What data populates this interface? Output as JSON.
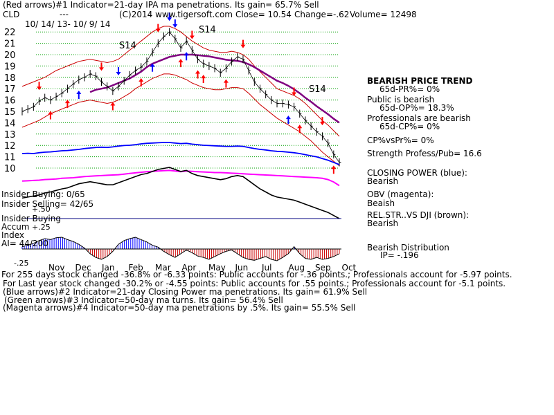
{
  "header": {
    "line1": "(Red arrows)#1 Indicator=21-day IPA ma penetrations. Its gain= 65.7% Sell",
    "ticker": "CLD",
    "dashes": "---",
    "site": "(C)2014 www.tigersoft.com",
    "close": "Close= 10.54",
    "change": "Change=-.62",
    "volume": "Volume= 12498",
    "date_range": "10/ 14/ 13- 10/ 9/ 14"
  },
  "signals": {
    "s14_a": "S14",
    "s14_b": "S14",
    "s14_c": "S14"
  },
  "side_panel": {
    "trend_title": "BEARISH PRICE TREND",
    "pr": "65d-PR%= 0%",
    "public_title": "Public is bearish",
    "op": "65d-OP%= 18.3%",
    "prof_title": "Professionals are bearish",
    "cp": "65d-CP%= 0%",
    "cpvspr": "CP%vsPr%=  0%",
    "strength": "Strength Profess/Pub= 16.6",
    "closing_power": "CLOSING POWER (blue):",
    "closing_power_val": "Bearish",
    "obv": "OBV (magenta):",
    "obv_val": "Beaish",
    "relstr": "REL.STR..VS DJI (brown):",
    "relstr_val": "Bearish",
    "dist": "Bearish Distribution",
    "ip": "IP= -.196"
  },
  "left_labels": {
    "insider_buying": "Insider Buying: 0/65",
    "insider_selling": "Insider Selling= 42/65",
    "val_50": "+.50",
    "insider_buying2": "Insider Buying",
    "accum": "Accum",
    "plus25": "+.25",
    "index": "Index",
    "ai": "AI= 44/200",
    "minus25": "-.25"
  },
  "footer": {
    "line1": "For 255 days stock changed -36.8% or -6.33 points:  Public accounts for -.36 points.;  Professionals account for -5.97 points.",
    "line2": "For Last year stock changed -30.2% or -4.55 points:  Public accounts for  .55 points.;  Professionals account for -5.1 points.",
    "line3": "(Blue arrows)#2 Indicator=21-day Closing Power ma penetrations. Its gain= 61.9% Sell",
    "line4": "(Green arrows)#3 Indicator=50-day ma turns. Its gain= 56.4% Sell",
    "line5": "(Magenta arrows)#4 Indicator=50-day ma penetrations by .5%. Its gain= 55.5% Sell"
  },
  "colors": {
    "price": "#000000",
    "ma": "#800080",
    "band": "#cc0000",
    "closing_power": "#0000ff",
    "obv": "#ff00ff",
    "relstr": "#000000",
    "accum_pos": "#0000ff",
    "accum_neg": "#cc0000",
    "grid": "#00a000",
    "arrow_red": "#ff0000",
    "arrow_blue": "#0000ff",
    "divider": "#000080"
  },
  "chart_data": {
    "type": "line",
    "ylim": [
      10,
      22.5
    ],
    "yticks": [
      "22",
      "21",
      "20",
      "19",
      "18",
      "17",
      "16",
      "15",
      "14",
      "13",
      "12",
      "11",
      "10"
    ],
    "months": [
      "Nov",
      "Dec",
      "Jan",
      "Feb",
      "Mar",
      "Apr",
      "May",
      "Jun",
      "Jul",
      "Aug",
      "Sep",
      "Oct"
    ],
    "price": [
      15.0,
      15.2,
      15.4,
      15.9,
      16.2,
      16.0,
      16.3,
      16.6,
      17.0,
      17.4,
      17.8,
      18.0,
      18.3,
      18.1,
      17.6,
      17.2,
      16.8,
      17.2,
      17.7,
      18.2,
      18.6,
      18.9,
      19.4,
      20.2,
      21.0,
      21.6,
      22.0,
      21.4,
      20.6,
      21.2,
      20.4,
      19.6,
      19.2,
      19.0,
      18.8,
      18.4,
      18.8,
      19.4,
      19.8,
      19.6,
      18.6,
      17.6,
      17.0,
      16.5,
      16.0,
      15.7,
      15.7,
      15.6,
      15.4,
      14.8,
      14.2,
      13.7,
      13.2,
      12.8,
      12.2,
      11.2,
      10.5
    ],
    "ma50": [
      null,
      null,
      null,
      null,
      null,
      null,
      null,
      null,
      null,
      null,
      null,
      null,
      16.7,
      16.9,
      17.0,
      17.1,
      17.3,
      17.5,
      17.7,
      17.9,
      18.2,
      18.5,
      18.9,
      19.2,
      19.4,
      19.6,
      19.8,
      19.9,
      20.0,
      20.0,
      20.0,
      19.95,
      19.9,
      19.85,
      19.75,
      19.65,
      19.55,
      19.5,
      19.45,
      19.35,
      19.15,
      18.9,
      18.6,
      18.3,
      18.0,
      17.7,
      17.5,
      17.25,
      16.95,
      16.6,
      16.2,
      15.85,
      15.45,
      15.1,
      14.75,
      14.35,
      14.0
    ],
    "upper_band": [
      17.2,
      17.4,
      17.6,
      17.8,
      18.0,
      18.3,
      18.6,
      18.8,
      19.0,
      19.2,
      19.4,
      19.5,
      19.6,
      19.5,
      19.4,
      19.3,
      19.4,
      19.6,
      20.0,
      20.4,
      20.8,
      21.2,
      21.6,
      22.0,
      22.3,
      22.5,
      22.5,
      22.3,
      22.0,
      21.6,
      21.2,
      20.9,
      20.6,
      20.4,
      20.3,
      20.2,
      20.2,
      20.3,
      20.2,
      20.0,
      19.6,
      19.0,
      18.5,
      18.0,
      17.5,
      17.0,
      16.8,
      16.6,
      16.4,
      16.1,
      15.7,
      15.2,
      14.7,
      14.2,
      13.8,
      13.3,
      12.8
    ],
    "lower_band": [
      13.6,
      13.8,
      14.0,
      14.2,
      14.5,
      14.8,
      15.0,
      15.2,
      15.4,
      15.6,
      15.8,
      15.9,
      16.0,
      15.9,
      15.8,
      15.7,
      15.8,
      16.0,
      16.3,
      16.6,
      17.0,
      17.3,
      17.6,
      17.9,
      18.1,
      18.3,
      18.3,
      18.2,
      18.0,
      17.8,
      17.5,
      17.3,
      17.1,
      17.0,
      16.9,
      16.9,
      17.0,
      17.1,
      17.1,
      17.0,
      16.6,
      16.1,
      15.6,
      15.2,
      14.8,
      14.4,
      14.1,
      13.8,
      13.5,
      13.2,
      12.8,
      12.4,
      11.9,
      11.4,
      11.0,
      10.6,
      10.2
    ],
    "closing_power": [
      0.5,
      0.51,
      0.5,
      0.53,
      0.55,
      0.56,
      0.58,
      0.6,
      0.61,
      0.63,
      0.65,
      0.68,
      0.7,
      0.72,
      0.73,
      0.72,
      0.74,
      0.77,
      0.79,
      0.8,
      0.82,
      0.85,
      0.87,
      0.88,
      0.89,
      0.9,
      0.9,
      0.88,
      0.86,
      0.87,
      0.84,
      0.82,
      0.8,
      0.79,
      0.78,
      0.77,
      0.76,
      0.76,
      0.77,
      0.76,
      0.72,
      0.68,
      0.65,
      0.63,
      0.6,
      0.58,
      0.57,
      0.55,
      0.53,
      0.5,
      0.46,
      0.42,
      0.38,
      0.32,
      0.26,
      0.18,
      0.1
    ],
    "obv": [
      0.55,
      0.56,
      0.57,
      0.58,
      0.6,
      0.61,
      0.62,
      0.64,
      0.65,
      0.66,
      0.68,
      0.7,
      0.71,
      0.72,
      0.73,
      0.74,
      0.75,
      0.76,
      0.78,
      0.8,
      0.82,
      0.84,
      0.86,
      0.87,
      0.88,
      0.89,
      0.9,
      0.88,
      0.86,
      0.88,
      0.87,
      0.86,
      0.85,
      0.84,
      0.83,
      0.83,
      0.82,
      0.81,
      0.8,
      0.79,
      0.78,
      0.77,
      0.76,
      0.75,
      0.74,
      0.73,
      0.72,
      0.71,
      0.7,
      0.69,
      0.68,
      0.67,
      0.66,
      0.64,
      0.6,
      0.52,
      0.4
    ],
    "relstr": [
      0.4,
      0.42,
      0.44,
      0.46,
      0.5,
      0.52,
      0.55,
      0.58,
      0.6,
      0.64,
      0.68,
      0.7,
      0.72,
      0.7,
      0.68,
      0.66,
      0.66,
      0.7,
      0.74,
      0.78,
      0.82,
      0.86,
      0.88,
      0.92,
      0.96,
      0.98,
      1.0,
      0.96,
      0.92,
      0.94,
      0.88,
      0.84,
      0.82,
      0.8,
      0.78,
      0.76,
      0.78,
      0.82,
      0.84,
      0.82,
      0.74,
      0.66,
      0.58,
      0.52,
      0.46,
      0.42,
      0.4,
      0.38,
      0.36,
      0.32,
      0.28,
      0.24,
      0.2,
      0.16,
      0.12,
      0.06,
      0.0
    ],
    "accum": [
      0.05,
      0.08,
      0.12,
      0.18,
      0.22,
      0.2,
      0.24,
      0.25,
      0.2,
      0.16,
      0.1,
      0.02,
      -0.1,
      -0.18,
      -0.22,
      -0.16,
      -0.05,
      0.1,
      0.18,
      0.22,
      0.25,
      0.2,
      0.15,
      0.08,
      0.04,
      -0.05,
      -0.12,
      -0.18,
      -0.1,
      -0.02,
      -0.08,
      -0.15,
      -0.18,
      -0.22,
      -0.16,
      -0.1,
      -0.05,
      -0.02,
      -0.1,
      -0.18,
      -0.22,
      -0.24,
      -0.2,
      -0.16,
      -0.22,
      -0.25,
      -0.18,
      -0.1,
      0.05,
      -0.1,
      -0.2,
      -0.22,
      -0.18,
      -0.22,
      -0.2,
      -0.16,
      -0.1
    ]
  }
}
